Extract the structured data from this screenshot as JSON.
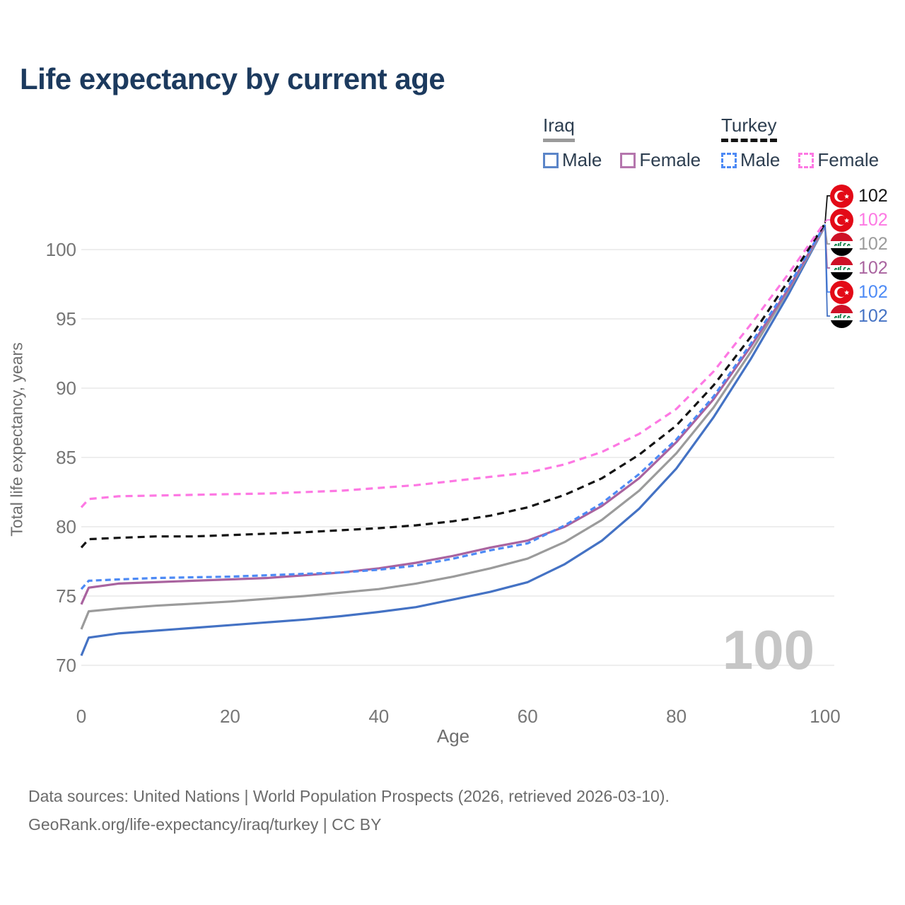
{
  "page": {
    "title": "Life expectancy by current age"
  },
  "legend": {
    "iraq": {
      "title": "Iraq",
      "male": "Male",
      "female": "Female"
    },
    "turkey": {
      "title": "Turkey",
      "male": "Male",
      "female": "Female"
    }
  },
  "footer": {
    "line1": "Data sources: United Nations | World Population Prospects (2026, retrieved 2026-03-10).",
    "line2": "GeoRank.org/life-expectancy/iraq/turkey | CC BY"
  },
  "chart_data": {
    "type": "line",
    "title": "Life expectancy by current age",
    "xlabel": "Age",
    "ylabel": "Total life expectancy, years",
    "xlim": [
      0,
      100
    ],
    "ylim": [
      69,
      103
    ],
    "xticks": [
      0,
      20,
      40,
      60,
      80,
      100
    ],
    "yticks": [
      70,
      75,
      80,
      85,
      90,
      95,
      100
    ],
    "grid": "horizontal",
    "legend_position": "top-right",
    "annotation": "100",
    "ages": [
      0,
      1,
      5,
      10,
      15,
      20,
      25,
      30,
      35,
      40,
      45,
      50,
      55,
      60,
      65,
      70,
      75,
      80,
      85,
      90,
      95,
      100
    ],
    "series": [
      {
        "name": "Iraq Male",
        "country": "iraq",
        "sex": "male",
        "color": "#4472c4",
        "dash": false,
        "values": [
          70.7,
          72.0,
          72.3,
          72.5,
          72.7,
          72.9,
          73.1,
          73.3,
          73.55,
          73.85,
          74.2,
          74.75,
          75.3,
          76.0,
          77.3,
          79.0,
          81.3,
          84.2,
          87.9,
          92.1,
          96.7,
          101.7
        ]
      },
      {
        "name": "Iraq",
        "country": "iraq",
        "sex": "total",
        "color": "#9b9b9b",
        "dash": false,
        "values": [
          72.6,
          73.9,
          74.1,
          74.3,
          74.45,
          74.6,
          74.8,
          75.0,
          75.25,
          75.5,
          75.9,
          76.4,
          77.0,
          77.7,
          78.9,
          80.5,
          82.6,
          85.3,
          88.6,
          92.6,
          97.0,
          101.7
        ]
      },
      {
        "name": "Iraq Female",
        "country": "iraq",
        "sex": "female",
        "color": "#a9639f",
        "dash": false,
        "values": [
          74.4,
          75.6,
          75.9,
          76.0,
          76.1,
          76.2,
          76.3,
          76.5,
          76.7,
          77.0,
          77.4,
          77.9,
          78.5,
          79.0,
          80.0,
          81.5,
          83.5,
          86.1,
          89.2,
          93.0,
          97.1,
          101.8
        ]
      },
      {
        "name": "Turkey Male",
        "country": "turkey",
        "sex": "male",
        "color": "#4d8af5",
        "dash": true,
        "values": [
          75.5,
          76.1,
          76.2,
          76.3,
          76.35,
          76.4,
          76.5,
          76.6,
          76.7,
          76.9,
          77.2,
          77.7,
          78.3,
          78.8,
          80.1,
          81.7,
          83.8,
          86.3,
          89.4,
          93.2,
          97.3,
          101.8
        ]
      },
      {
        "name": "Turkey",
        "country": "turkey",
        "sex": "total",
        "color": "#141414",
        "dash": true,
        "values": [
          78.5,
          79.1,
          79.2,
          79.3,
          79.3,
          79.4,
          79.5,
          79.6,
          79.75,
          79.9,
          80.1,
          80.4,
          80.8,
          81.4,
          82.3,
          83.5,
          85.2,
          87.3,
          90.2,
          93.7,
          97.7,
          101.9
        ]
      },
      {
        "name": "Turkey Female",
        "country": "turkey",
        "sex": "female",
        "color": "#fd78e3",
        "dash": true,
        "values": [
          81.4,
          82.0,
          82.2,
          82.25,
          82.3,
          82.35,
          82.4,
          82.5,
          82.6,
          82.8,
          83.0,
          83.3,
          83.6,
          83.9,
          84.5,
          85.4,
          86.7,
          88.5,
          91.2,
          94.6,
          98.2,
          102.0
        ]
      }
    ],
    "end_labels": [
      {
        "series": "Turkey",
        "country": "turkey",
        "value": "102",
        "color": "#141414"
      },
      {
        "series": "Turkey Female",
        "country": "turkey",
        "value": "102",
        "color": "#fd78e3"
      },
      {
        "series": "Iraq",
        "country": "iraq",
        "value": "102",
        "color": "#9b9b9b"
      },
      {
        "series": "Iraq Female",
        "country": "iraq",
        "value": "102",
        "color": "#a9639f"
      },
      {
        "series": "Turkey Male",
        "country": "turkey",
        "value": "102",
        "color": "#4d8af5"
      },
      {
        "series": "Iraq Male",
        "country": "iraq",
        "value": "102",
        "color": "#4472c4"
      }
    ]
  }
}
